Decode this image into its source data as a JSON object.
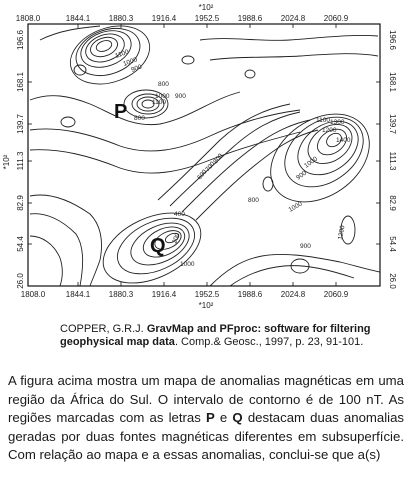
{
  "figure": {
    "top_exponent": "*10²",
    "bottom_exponent": "*10²",
    "left_exponent": "*10²",
    "x_ticks": [
      "1808.0",
      "1844.1",
      "1880.3",
      "1916.4",
      "1952.5",
      "1988.6",
      "2024.8",
      "2060.9"
    ],
    "y_ticks": [
      "196.6",
      "168.1",
      "139.7",
      "111.3",
      "82.9",
      "54.4",
      "26.0"
    ],
    "contour_labels": [
      "1100",
      "1000",
      "900",
      "800",
      "1100",
      "1000",
      "900",
      "800",
      "600",
      "700",
      "800",
      "900",
      "1000",
      "1100",
      "1200",
      "1300",
      "1400",
      "1000",
      "800",
      "400",
      "200",
      "1000",
      "1200",
      "900"
    ],
    "label_p": "P",
    "label_q": "Q"
  },
  "caption": {
    "author": "COPPER, G.R.J.",
    "title": "GravMap and PFproc: software for filtering geophysical map data",
    "source": ". Comp.& Geosc., 1997, p. 23, 91-101."
  },
  "body": {
    "part1": "A figura acima mostra um mapa de anomalias magnéticas em uma região da África do Sul. O intervalo de contorno é de 100 nT. As regiões marcadas com as letras ",
    "p": "P",
    "and": " e ",
    "q": "Q",
    "part2": " destacam duas anomalias geradas por duas fontes magnéticas diferentes em subsuperfície. Com relação ao mapa e a essas anomalias, conclui-se que a(s)"
  }
}
